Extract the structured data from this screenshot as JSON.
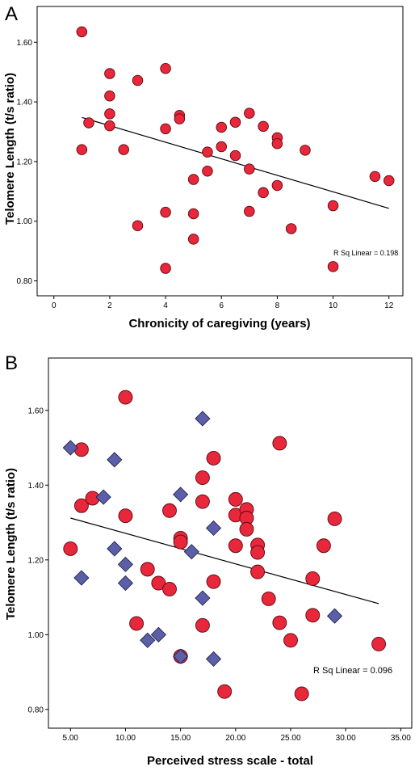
{
  "chart_data": [
    {
      "type": "scatter",
      "panel_label": "A",
      "title": "",
      "xlabel": "Chronicity of caregiving (years)",
      "ylabel": "Telomere Length (t/s ratio)",
      "xlim": [
        -0.6,
        12.5
      ],
      "ylim": [
        0.75,
        1.72
      ],
      "x_ticks": [
        0,
        2,
        4,
        6,
        8,
        10,
        12
      ],
      "x_tick_labels": [
        "0",
        "2",
        "4",
        "6",
        "8",
        "10",
        "12"
      ],
      "y_ticks": [
        0.8,
        1.0,
        1.2,
        1.4,
        1.6
      ],
      "y_tick_labels": [
        "0.80",
        "1.00",
        "1.20",
        "1.40",
        "1.60"
      ],
      "grid": false,
      "annotation": "R Sq Linear = 0.198",
      "fit_line": {
        "x": [
          1,
          12
        ],
        "y": [
          1.348,
          1.043
        ]
      },
      "series": [
        {
          "marker": "circle",
          "color": "#e8273a",
          "points": [
            [
              1.0,
              1.635
            ],
            [
              1.0,
              1.24
            ],
            [
              1.25,
              1.33
            ],
            [
              2.0,
              1.495
            ],
            [
              2.0,
              1.42
            ],
            [
              2.0,
              1.36
            ],
            [
              2.0,
              1.32
            ],
            [
              2.5,
              1.24
            ],
            [
              3.0,
              1.472
            ],
            [
              3.0,
              0.985
            ],
            [
              4.0,
              1.512
            ],
            [
              4.0,
              1.31
            ],
            [
              4.0,
              1.03
            ],
            [
              4.0,
              0.842
            ],
            [
              4.5,
              1.355
            ],
            [
              4.5,
              1.343
            ],
            [
              5.0,
              1.14
            ],
            [
              5.0,
              1.025
            ],
            [
              5.0,
              0.94
            ],
            [
              5.5,
              1.232
            ],
            [
              5.5,
              1.168
            ],
            [
              6.0,
              1.315
            ],
            [
              6.0,
              1.25
            ],
            [
              6.5,
              1.332
            ],
            [
              6.5,
              1.22
            ],
            [
              7.0,
              1.362
            ],
            [
              7.0,
              1.175
            ],
            [
              7.0,
              1.033
            ],
            [
              7.5,
              1.318
            ],
            [
              7.5,
              1.096
            ],
            [
              8.0,
              1.28
            ],
            [
              8.0,
              1.26
            ],
            [
              8.0,
              1.12
            ],
            [
              8.5,
              0.975
            ],
            [
              9.0,
              1.238
            ],
            [
              10.0,
              1.052
            ],
            [
              10.0,
              0.848
            ],
            [
              11.5,
              1.15
            ],
            [
              12.0,
              1.136
            ]
          ]
        }
      ]
    },
    {
      "type": "scatter",
      "panel_label": "B",
      "title": "",
      "xlabel": "Perceived stress scale - total",
      "ylabel": "Telomere Length (t/s ratio)",
      "xlim": [
        3.0,
        36.0
      ],
      "ylim": [
        0.75,
        1.74
      ],
      "x_ticks": [
        5,
        10,
        15,
        20,
        25,
        30,
        35
      ],
      "x_tick_labels": [
        "5.00",
        "10.00",
        "15.00",
        "20.00",
        "25.00",
        "30.00",
        "35.00"
      ],
      "y_ticks": [
        0.8,
        1.0,
        1.2,
        1.4,
        1.6
      ],
      "y_tick_labels": [
        "0.80",
        "1.00",
        "1.20",
        "1.40",
        "1.60"
      ],
      "grid": false,
      "annotation": "R Sq Linear = 0.096",
      "fit_line": {
        "x": [
          5,
          33
        ],
        "y": [
          1.312,
          1.083
        ]
      },
      "series": [
        {
          "marker": "circle",
          "color": "#e8273a",
          "points": [
            [
              5.0,
              1.23
            ],
            [
              6.0,
              1.495
            ],
            [
              6.0,
              1.345
            ],
            [
              7.0,
              1.365
            ],
            [
              10.0,
              1.635
            ],
            [
              10.0,
              1.318
            ],
            [
              11.0,
              1.03
            ],
            [
              12.0,
              1.175
            ],
            [
              13.0,
              1.138
            ],
            [
              14.0,
              1.122
            ],
            [
              14.0,
              1.332
            ],
            [
              15.0,
              1.258
            ],
            [
              15.0,
              1.248
            ],
            [
              15.0,
              0.942
            ],
            [
              17.0,
              1.42
            ],
            [
              17.0,
              1.356
            ],
            [
              17.0,
              1.025
            ],
            [
              18.0,
              1.472
            ],
            [
              18.0,
              1.142
            ],
            [
              19.0,
              0.848
            ],
            [
              20.0,
              1.362
            ],
            [
              20.0,
              1.32
            ],
            [
              20.0,
              1.238
            ],
            [
              21.0,
              1.335
            ],
            [
              21.0,
              1.312
            ],
            [
              21.0,
              1.282
            ],
            [
              22.0,
              1.24
            ],
            [
              22.0,
              1.22
            ],
            [
              22.0,
              1.168
            ],
            [
              23.0,
              1.096
            ],
            [
              24.0,
              1.512
            ],
            [
              24.0,
              1.032
            ],
            [
              25.0,
              0.985
            ],
            [
              26.0,
              0.842
            ],
            [
              27.0,
              1.15
            ],
            [
              27.0,
              1.052
            ],
            [
              28.0,
              1.238
            ],
            [
              29.0,
              1.31
            ],
            [
              33.0,
              0.975
            ]
          ]
        },
        {
          "marker": "diamond",
          "color": "#5a5fa8",
          "points": [
            [
              5.0,
              1.5
            ],
            [
              6.0,
              1.152
            ],
            [
              8.0,
              1.368
            ],
            [
              9.0,
              1.468
            ],
            [
              9.0,
              1.23
            ],
            [
              10.0,
              1.188
            ],
            [
              10.0,
              1.138
            ],
            [
              12.0,
              0.985
            ],
            [
              13.0,
              1.0
            ],
            [
              15.0,
              1.375
            ],
            [
              15.0,
              0.942
            ],
            [
              16.0,
              1.222
            ],
            [
              17.0,
              1.578
            ],
            [
              17.0,
              1.098
            ],
            [
              18.0,
              1.285
            ],
            [
              18.0,
              0.935
            ],
            [
              29.0,
              1.05
            ]
          ]
        }
      ]
    }
  ]
}
